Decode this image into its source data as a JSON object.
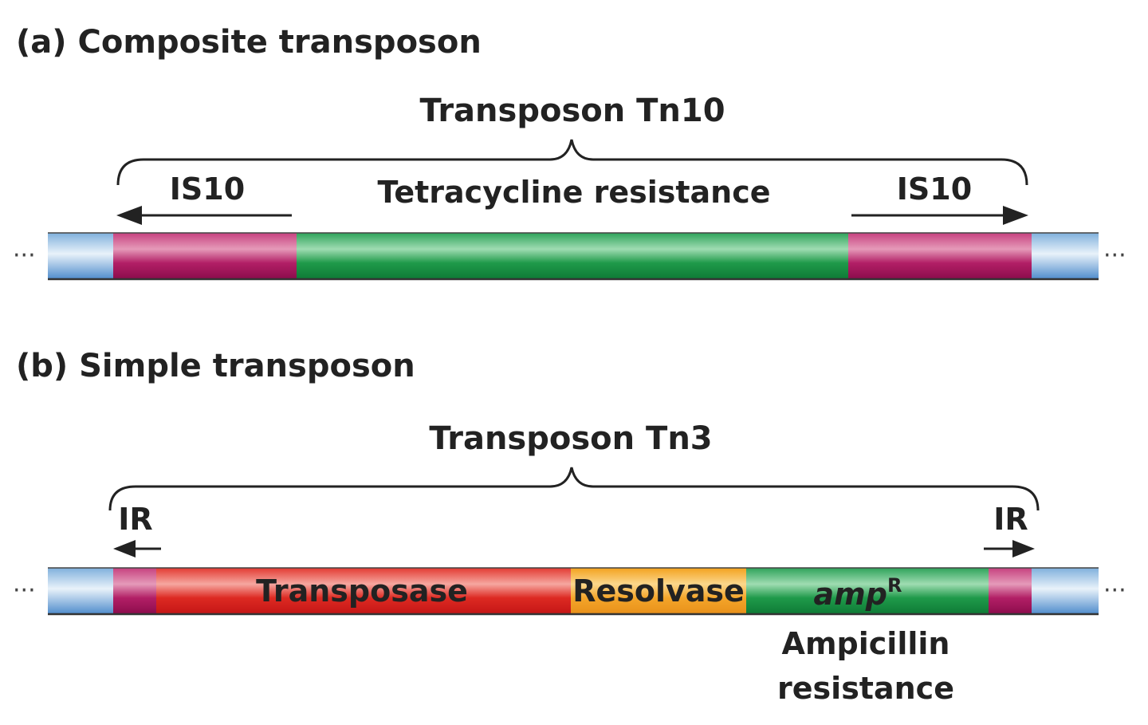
{
  "panel_a": {
    "title": "(a) Composite transposon",
    "transposon_name": "Transposon Tn10",
    "left_element": "IS10",
    "right_element": "IS10",
    "center_label": "Tetracycline resistance"
  },
  "panel_b": {
    "title": "(b) Simple transposon",
    "transposon_name": "Transposon Tn3",
    "left_repeat": "IR",
    "right_repeat": "IR",
    "gene_transposase": "Transposase",
    "gene_resolvase": "Resolvase",
    "gene_amp": "amp",
    "gene_amp_superscript": "R",
    "amp_caption_line1": "Ampicillin",
    "amp_caption_line2": "resistance"
  },
  "continuation_mark": "···",
  "colors": {
    "flank_dna": "#5b9bd5",
    "is_element": "#a0105a",
    "tetracycline": "#1e9a4a",
    "transposase": "#d81f1f",
    "resolvase": "#f4a61d",
    "ampicillin": "#1e9a4a",
    "text": "#222222"
  }
}
